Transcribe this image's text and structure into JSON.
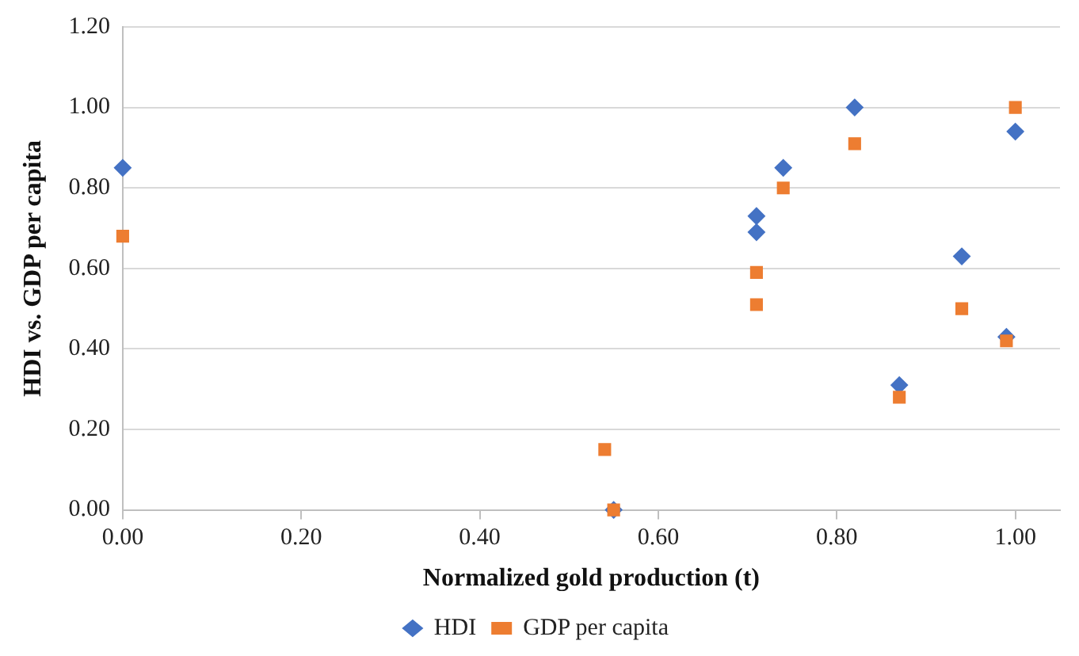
{
  "chart_data": {
    "type": "scatter",
    "xlabel": "Normalized gold production (t)",
    "ylabel": "HDI vs. GDP per capita",
    "series": [
      {
        "name": "HDI",
        "color": "#4472c4",
        "marker": "diamond",
        "x": [
          0.0,
          0.71,
          0.71,
          0.74,
          0.82,
          0.94,
          1.0,
          0.87,
          0.99,
          0.55
        ],
        "values": [
          0.85,
          0.73,
          0.69,
          0.85,
          1.0,
          0.63,
          0.94,
          0.31,
          0.43,
          0.0
        ]
      },
      {
        "name": "GDP per capita",
        "color": "#ed7d31",
        "marker": "square",
        "x": [
          0.0,
          0.74,
          0.82,
          0.71,
          1.0,
          0.71,
          0.94,
          0.99,
          0.87,
          0.54,
          0.55
        ],
        "values": [
          0.68,
          0.8,
          0.91,
          0.59,
          1.0,
          0.51,
          0.5,
          0.42,
          0.28,
          0.15,
          0.0
        ]
      }
    ],
    "xlim": [
      0,
      1.05
    ],
    "xticks": [
      {
        "value": 0,
        "label": "0.00"
      },
      {
        "value": 0.2,
        "label": "0.20"
      },
      {
        "value": 0.4,
        "label": "0.40"
      },
      {
        "value": 0.6,
        "label": "0.60"
      },
      {
        "value": 0.8,
        "label": "0.80"
      },
      {
        "value": 1,
        "label": "1.00"
      }
    ],
    "ylim": [
      0,
      1.2
    ],
    "yticks": [
      {
        "value": 0,
        "label": "0.00"
      },
      {
        "value": 0.2,
        "label": "0.20"
      },
      {
        "value": 0.4,
        "label": "0.40"
      },
      {
        "value": 0.6,
        "label": "0.60"
      },
      {
        "value": 0.8,
        "label": "0.80"
      },
      {
        "value": 1,
        "label": "1.00"
      },
      {
        "value": 1.2,
        "label": "1.20"
      }
    ],
    "grid": "y",
    "legend": "bottom"
  }
}
